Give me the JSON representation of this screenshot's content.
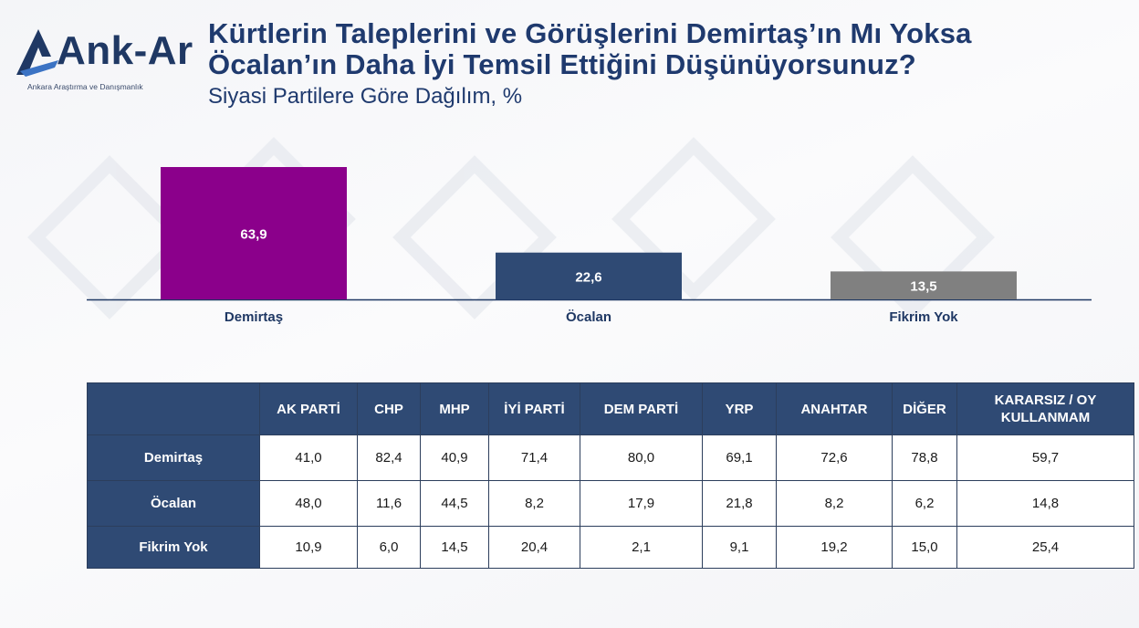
{
  "logo": {
    "name": "Ank-Ar",
    "tagline": "Ankara Araştırma ve Danışmanlık"
  },
  "title_line1": "Kürtlerin Taleplerini ve Görüşlerini Demirtaş’ın Mı Yoksa",
  "title_line2": "Öcalan’ın Daha İyi Temsil Ettiğini Düşünüyorsunuz?",
  "subtitle": "Siyasi Partilere Göre Dağılım, %",
  "colors": {
    "demirtas": "#8b008b",
    "ocalan": "#2f4a74",
    "fikrim_yok": "#808080",
    "navy": "#1f3864"
  },
  "chart_data": {
    "type": "bar",
    "categories": [
      "Demirtaş",
      "Öcalan",
      "Fikrim Yok"
    ],
    "values": [
      63.9,
      22.6,
      13.5
    ],
    "value_labels": [
      "63,9",
      "22,6",
      "13,5"
    ],
    "bar_colors": [
      "#8b008b",
      "#2f4a74",
      "#808080"
    ],
    "ylim": [
      0,
      65
    ],
    "grid": false,
    "legend": "none"
  },
  "table": {
    "columns": [
      "AK PARTİ",
      "CHP",
      "MHP",
      "İYİ PARTİ",
      "DEM PARTİ",
      "YRP",
      "ANAHTAR",
      "DİĞER",
      "KARARSIZ / OY KULLANMAM"
    ],
    "rows": [
      {
        "label": "Demirtaş",
        "values": [
          "41,0",
          "82,4",
          "40,9",
          "71,4",
          "80,0",
          "69,1",
          "72,6",
          "78,8",
          "59,7"
        ]
      },
      {
        "label": "Öcalan",
        "values": [
          "48,0",
          "11,6",
          "44,5",
          "8,2",
          "17,9",
          "21,8",
          "8,2",
          "6,2",
          "14,8"
        ]
      },
      {
        "label": "Fikrim Yok",
        "values": [
          "10,9",
          "6,0",
          "14,5",
          "20,4",
          "2,1",
          "9,1",
          "19,2",
          "15,0",
          "25,4"
        ]
      }
    ]
  }
}
